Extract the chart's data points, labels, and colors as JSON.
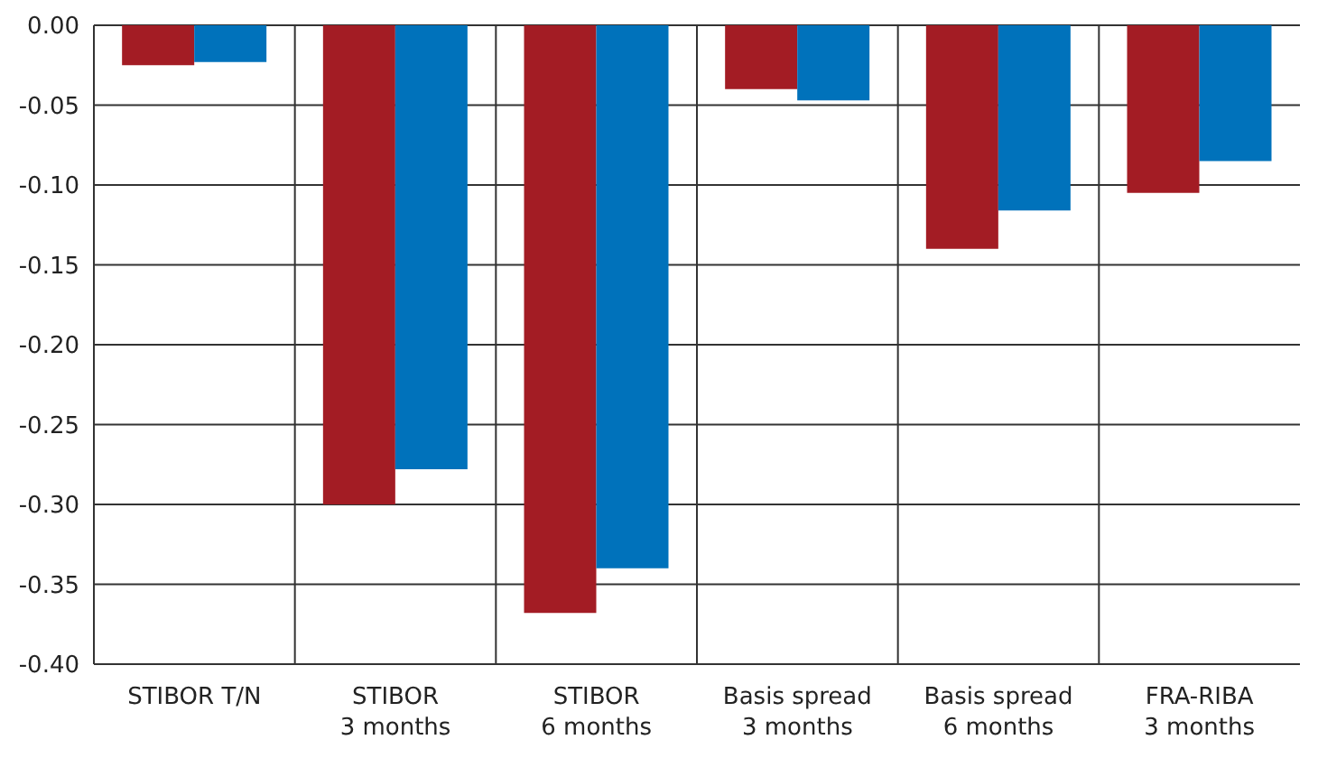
{
  "chart_data": {
    "type": "bar",
    "categories": [
      "STIBOR T/N",
      "STIBOR 3 months",
      "STIBOR 6 months",
      "Basis spread 3 months",
      "Basis spread 6 months",
      "FRA-RIBA 3 months"
    ],
    "series": [
      {
        "color": "#a31c24",
        "values": [
          -0.025,
          -0.3,
          -0.368,
          -0.04,
          -0.14,
          -0.105
        ]
      },
      {
        "color": "#0072bb",
        "values": [
          -0.023,
          -0.278,
          -0.34,
          -0.047,
          -0.116,
          -0.085
        ]
      }
    ],
    "ylim": [
      -0.4,
      0.0
    ],
    "yticks": [
      {
        "value": -0.4,
        "label": "-0.40"
      },
      {
        "value": -0.35,
        "label": "-0.35"
      },
      {
        "value": -0.3,
        "label": "-0.30"
      },
      {
        "value": -0.25,
        "label": "-0.25"
      },
      {
        "value": -0.2,
        "label": "-0.20"
      },
      {
        "value": -0.15,
        "label": "-0.15"
      },
      {
        "value": -0.1,
        "label": "-0.10"
      },
      {
        "value": -0.05,
        "label": "-0.05"
      },
      {
        "value": 0,
        "label": "0.00"
      }
    ],
    "grid": true,
    "legend": false
  }
}
